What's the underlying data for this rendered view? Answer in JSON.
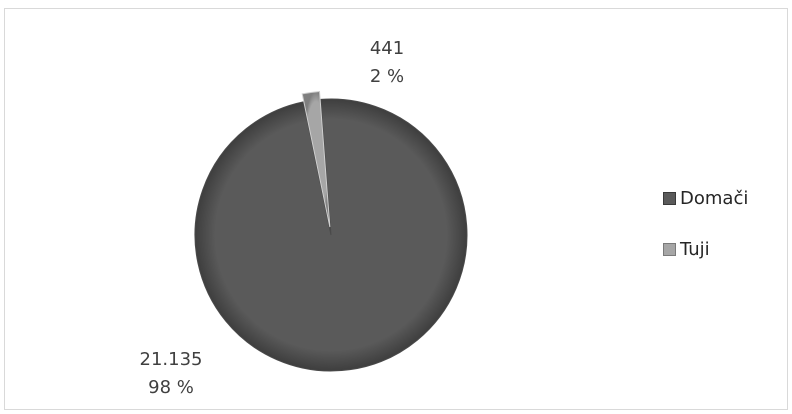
{
  "chart_data": {
    "type": "pie",
    "title": "",
    "slices": [
      {
        "name": "Domači",
        "value": 21135,
        "value_label": "21.135",
        "percent_label": "98 %",
        "color": "#5a5a5a"
      },
      {
        "name": "Tuji",
        "value": 441,
        "value_label": "441",
        "percent_label": "2 %",
        "color": "#a6a6a6"
      }
    ],
    "legend": {
      "position": "right",
      "items": [
        "Domači",
        "Tuji"
      ]
    }
  }
}
